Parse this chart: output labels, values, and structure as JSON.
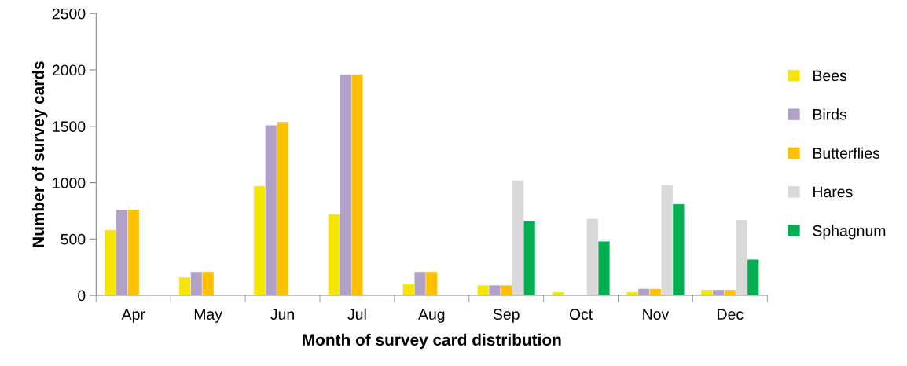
{
  "chart_data": {
    "type": "bar",
    "xlabel": "Month of survey card distribution",
    "ylabel": "Number of survey cards",
    "categories": [
      "Apr",
      "May",
      "Jun",
      "Jul",
      "Aug",
      "Sep",
      "Oct",
      "Nov",
      "Dec"
    ],
    "series": [
      {
        "name": "Bees",
        "color": "#f5e600",
        "values": [
          580,
          160,
          970,
          720,
          100,
          90,
          30,
          30,
          50
        ]
      },
      {
        "name": "Birds",
        "color": "#b1a0c7",
        "values": [
          760,
          210,
          1510,
          1960,
          210,
          90,
          null,
          60,
          50
        ]
      },
      {
        "name": "Butterflies",
        "color": "#ffc000",
        "values": [
          760,
          210,
          1540,
          1960,
          210,
          90,
          null,
          60,
          50
        ]
      },
      {
        "name": "Hares",
        "color": "#d9d9d9",
        "values": [
          null,
          null,
          null,
          null,
          null,
          1020,
          680,
          980,
          670
        ]
      },
      {
        "name": "Sphagnum",
        "color": "#00b050",
        "values": [
          null,
          null,
          null,
          null,
          null,
          660,
          480,
          810,
          320
        ]
      }
    ],
    "ylim": [
      0,
      2500
    ],
    "yticks": [
      0,
      500,
      1000,
      1500,
      2000,
      2500
    ],
    "grid": false,
    "legend": "right"
  }
}
